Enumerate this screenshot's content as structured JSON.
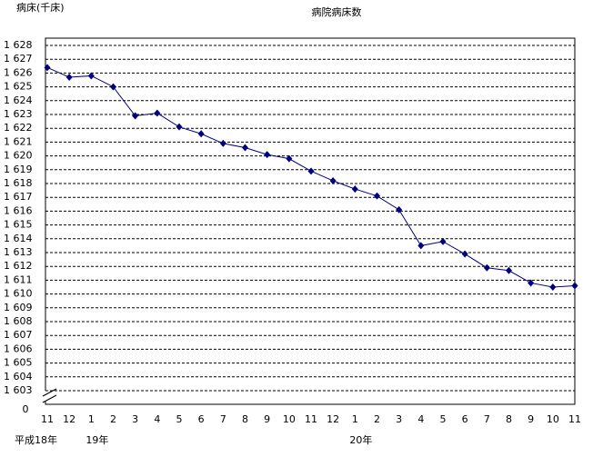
{
  "chart_data": {
    "type": "line",
    "title": "病院病床数",
    "y_label": "病床(千床)",
    "categories": [
      "11",
      "12",
      "1",
      "2",
      "3",
      "4",
      "5",
      "6",
      "7",
      "8",
      "9",
      "10",
      "11",
      "12",
      "1",
      "2",
      "3",
      "4",
      "5",
      "6",
      "7",
      "8",
      "9",
      "10",
      "11"
    ],
    "year_labels": [
      {
        "index": 0,
        "label": "平成18年"
      },
      {
        "index": 2,
        "label": "19年"
      },
      {
        "index": 14,
        "label": "20年"
      }
    ],
    "series": [
      {
        "name": "病院病床数",
        "color": "#000080",
        "values": [
          1626.4,
          1625.7,
          1625.8,
          1625.0,
          1622.9,
          1623.1,
          1622.1,
          1621.6,
          1620.9,
          1620.6,
          1620.1,
          1619.8,
          1618.9,
          1618.2,
          1617.6,
          1617.1,
          1616.1,
          1613.5,
          1613.8,
          1612.9,
          1611.9,
          1611.7,
          1610.8,
          1610.5,
          1610.6
        ]
      }
    ],
    "ylim": [
      1603,
      1628
    ],
    "yticks": [
      {
        "value": 1603,
        "label": "1 603"
      },
      {
        "value": 1604,
        "label": "1 604"
      },
      {
        "value": 1605,
        "label": "1 605"
      },
      {
        "value": 1606,
        "label": "1 606"
      },
      {
        "value": 1607,
        "label": "1 607"
      },
      {
        "value": 1608,
        "label": "1 608"
      },
      {
        "value": 1609,
        "label": "1 609"
      },
      {
        "value": 1610,
        "label": "1 610"
      },
      {
        "value": 1611,
        "label": "1 611"
      },
      {
        "value": 1612,
        "label": "1 612"
      },
      {
        "value": 1613,
        "label": "1 613"
      },
      {
        "value": 1614,
        "label": "1 614"
      },
      {
        "value": 1615,
        "label": "1 615"
      },
      {
        "value": 1616,
        "label": "1 616"
      },
      {
        "value": 1617,
        "label": "1 617"
      },
      {
        "value": 1618,
        "label": "1 618"
      },
      {
        "value": 1619,
        "label": "1 619"
      },
      {
        "value": 1620,
        "label": "1 620"
      },
      {
        "value": 1621,
        "label": "1 621"
      },
      {
        "value": 1622,
        "label": "1 622"
      },
      {
        "value": 1623,
        "label": "1 623"
      },
      {
        "value": 1624,
        "label": "1 624"
      },
      {
        "value": 1625,
        "label": "1 625"
      },
      {
        "value": 1626,
        "label": "1 626"
      },
      {
        "value": 1627,
        "label": "1 627"
      },
      {
        "value": 1628,
        "label": "1 628"
      }
    ],
    "axis_break_tick": 0,
    "grid": true
  }
}
